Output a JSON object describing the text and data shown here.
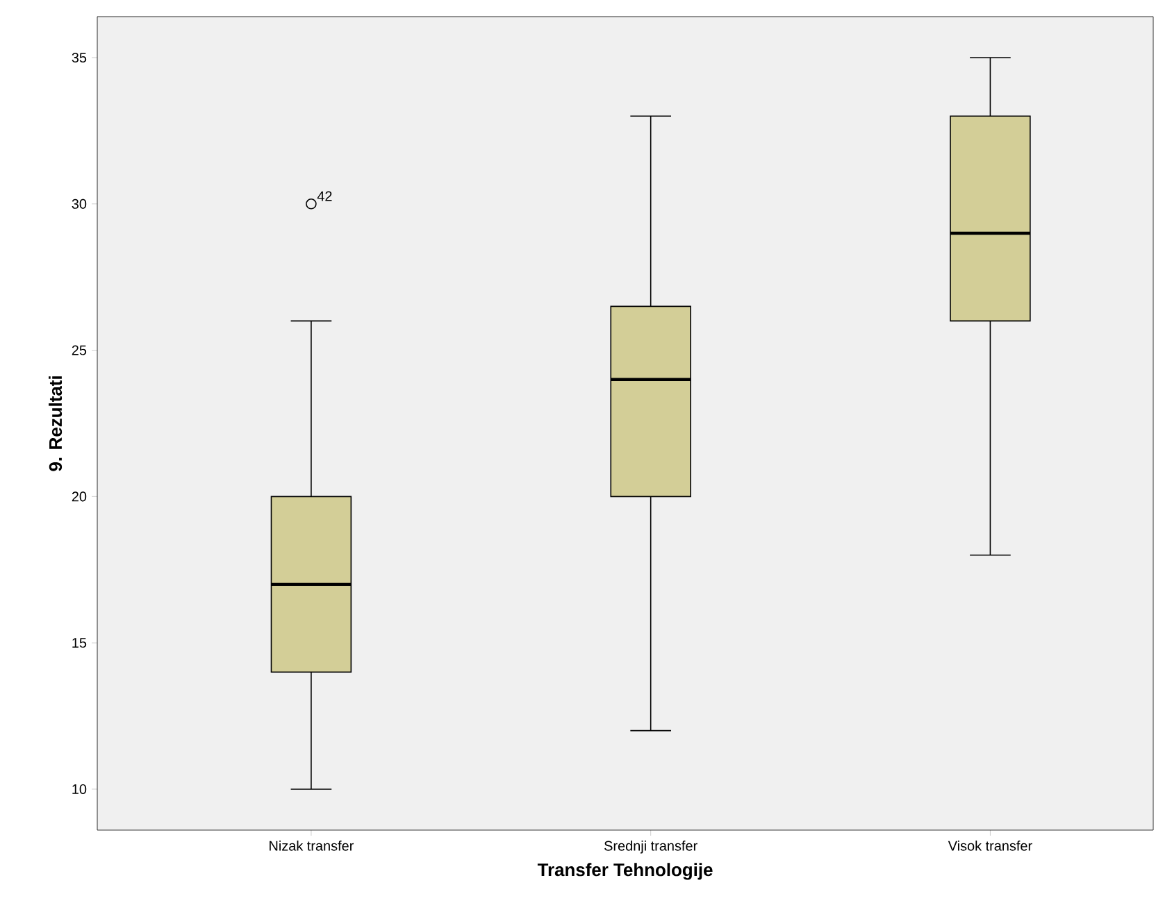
{
  "chart_data": {
    "type": "box",
    "xlabel": "Transfer Tehnologije",
    "ylabel": "9. Rezultati",
    "categories": [
      "Nizak transfer",
      "Srednji transfer",
      "Visok transfer"
    ],
    "boxes": [
      {
        "low": 10,
        "q1": 14,
        "median": 17,
        "q3": 20,
        "high": 26,
        "outliers": [
          30
        ]
      },
      {
        "low": 12,
        "q1": 20,
        "median": 24,
        "q3": 26.5,
        "high": 33
      },
      {
        "low": 18,
        "q1": 26,
        "median": 29,
        "q3": 33,
        "high": 35
      }
    ],
    "color": "#d3ce97",
    "marker": "circle",
    "ylim": [
      8.6,
      36.4
    ],
    "yticks": [
      10,
      15,
      20,
      25,
      30,
      35
    ],
    "annotations": [
      "42"
    ]
  }
}
